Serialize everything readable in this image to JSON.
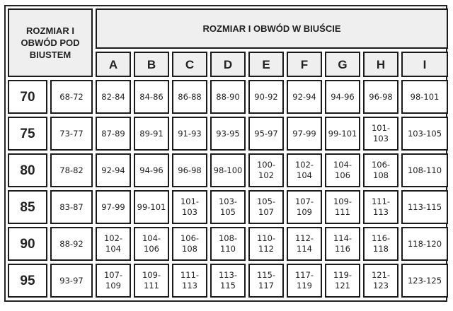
{
  "header": {
    "left": "ROZMIAR I OBWÓD POD BIUSTEM",
    "right": "ROZMIAR I OBWÓD W BIUŚCIE"
  },
  "cups": [
    "A",
    "B",
    "C",
    "D",
    "E",
    "F",
    "G",
    "H",
    "I"
  ],
  "rows": [
    {
      "size": "70",
      "underbust": "68-72",
      "values": [
        "82-84",
        "84-86",
        "86-88",
        "88-90",
        "90-92",
        "92-94",
        "94-96",
        "96-98",
        "98-101"
      ]
    },
    {
      "size": "75",
      "underbust": "73-77",
      "values": [
        "87-89",
        "89-91",
        "91-93",
        "93-95",
        "95-97",
        "97-99",
        "99-101",
        "101-103",
        "103-105"
      ]
    },
    {
      "size": "80",
      "underbust": "78-82",
      "values": [
        "92-94",
        "94-96",
        "96-98",
        "98-100",
        "100-102",
        "102-104",
        "104-106",
        "106-108",
        "108-110"
      ]
    },
    {
      "size": "85",
      "underbust": "83-87",
      "values": [
        "97-99",
        "99-101",
        "101-103",
        "103-105",
        "105-107",
        "107-109",
        "109-111",
        "111-113",
        "113-115"
      ]
    },
    {
      "size": "90",
      "underbust": "88-92",
      "values": [
        "102-104",
        "104-106",
        "106-108",
        "108-110",
        "110-112",
        "112-114",
        "114-116",
        "116-118",
        "118-120"
      ]
    },
    {
      "size": "95",
      "underbust": "93-97",
      "values": [
        "107-109",
        "109-111",
        "111-113",
        "113-115",
        "115-117",
        "117-119",
        "119-121",
        "121-123",
        "123-125"
      ]
    }
  ]
}
